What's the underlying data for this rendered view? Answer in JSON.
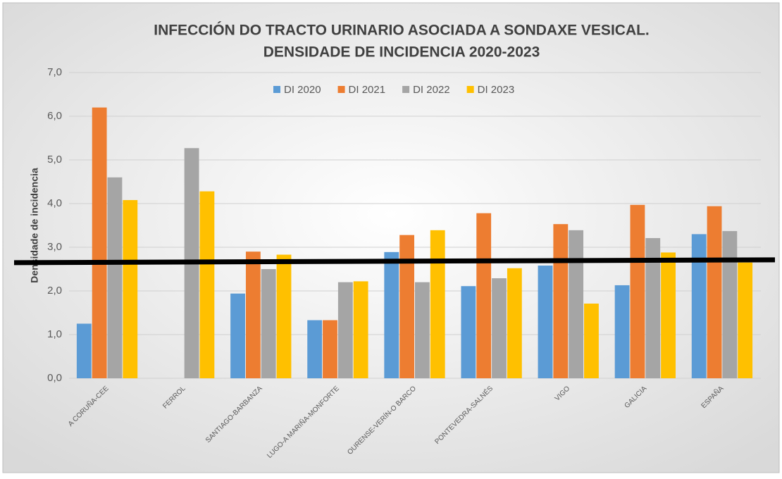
{
  "chart_data": {
    "type": "bar",
    "title": [
      "INFECCIÓN DO TRACTO URINARIO ASOCIADA A SONDAXE VESICAL.",
      "DENSIDADE DE INCIDENCIA 2020-2023"
    ],
    "y_label": "Densidade de incidencia",
    "categories": [
      "A CORUÑA-CEE",
      "FERROL",
      "SANTIAGO-BARBANZA",
      "LUGO-A MARIÑA-MONFORTE",
      "OURENSE-VERÍN-O BARCO",
      "PONTEVEDRA-SALNÉS",
      "VIGO",
      "GALICIA",
      "ESPAÑA"
    ],
    "series": [
      {
        "name": "DI 2020",
        "color": "#5b9bd5",
        "values": [
          1.25,
          null,
          1.94,
          1.33,
          2.89,
          2.11,
          2.58,
          2.13,
          3.3
        ]
      },
      {
        "name": "DI 2021",
        "color": "#ed7d31",
        "values": [
          6.2,
          null,
          2.9,
          1.33,
          3.28,
          3.78,
          3.53,
          3.97,
          3.94
        ]
      },
      {
        "name": "DI 2022",
        "color": "#a5a5a5",
        "values": [
          4.6,
          5.27,
          2.5,
          2.2,
          2.2,
          2.29,
          3.39,
          3.21,
          3.37
        ]
      },
      {
        "name": "DI 2023",
        "color": "#ffc000",
        "values": [
          4.08,
          4.28,
          2.83,
          2.22,
          3.39,
          2.52,
          1.71,
          2.88,
          2.65
        ]
      }
    ],
    "ylim": [
      0,
      7
    ],
    "yticks": [
      {
        "value": 0,
        "label": "0,0"
      },
      {
        "value": 1,
        "label": "1,0"
      },
      {
        "value": 2,
        "label": "2,0"
      },
      {
        "value": 3,
        "label": "3,0"
      },
      {
        "value": 4,
        "label": "4,0"
      },
      {
        "value": 5,
        "label": "5,0"
      },
      {
        "value": 6,
        "label": "6,0"
      },
      {
        "value": 7,
        "label": "7,0"
      }
    ],
    "grid": true,
    "legend": "top",
    "reference_line": {
      "value": 2.68,
      "color": "#000000"
    }
  }
}
